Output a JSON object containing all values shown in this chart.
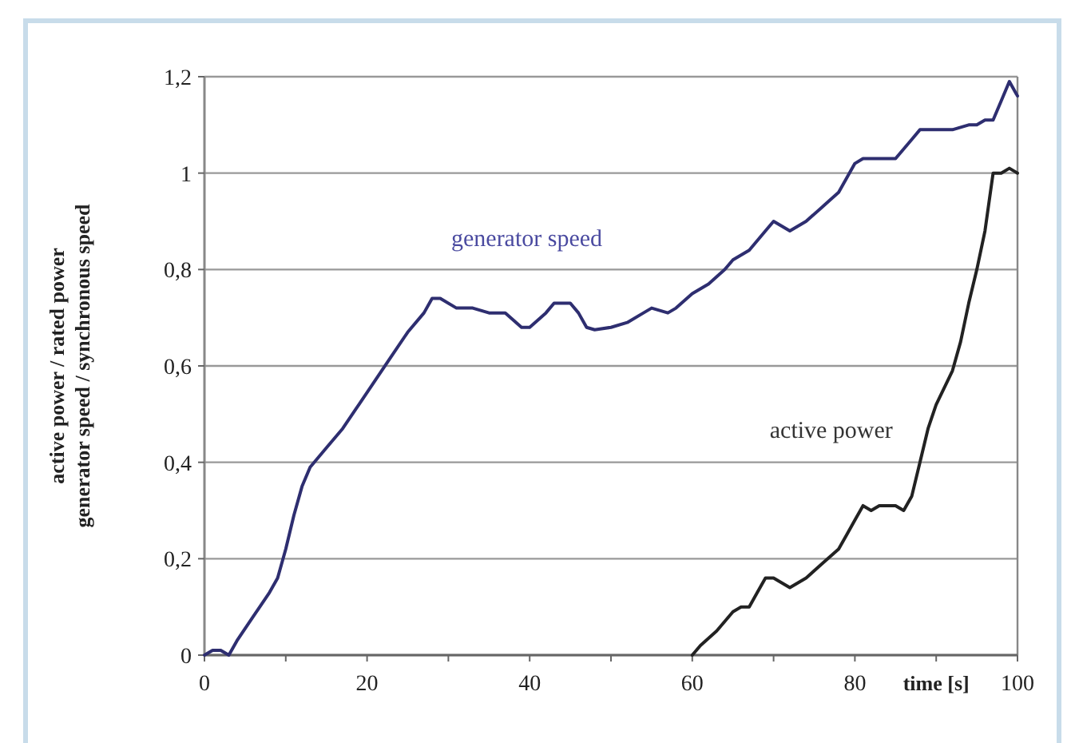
{
  "chart_data": {
    "type": "line",
    "xlabel": "time [s]",
    "ylabel": "active power / rated power\ngenerator speed / synchronous speed",
    "xlim": [
      0,
      100
    ],
    "ylim": [
      0,
      1.2
    ],
    "xticks": [
      0,
      {
        "value": 10,
        "label": null
      },
      20,
      {
        "value": 30,
        "label": null
      },
      40,
      {
        "value": 50,
        "label": null
      },
      60,
      {
        "value": 70,
        "label": null
      },
      80,
      {
        "value": 90,
        "label": null
      },
      100
    ],
    "yticks": [
      0,
      {
        "value": 0.2,
        "label": "0,2"
      },
      {
        "value": 0.4,
        "label": "0,4"
      },
      {
        "value": 0.6,
        "label": "0,6"
      },
      {
        "value": 0.8,
        "label": "0,8"
      },
      1,
      {
        "value": 1.2,
        "label": "1,2"
      }
    ],
    "grid": "y",
    "marker": "none",
    "line_style": "solid",
    "series": [
      {
        "name": "generator speed",
        "color": "#2e2e70",
        "x": [
          0,
          1,
          2,
          3,
          4,
          6,
          8,
          9,
          10,
          11,
          12,
          13,
          15,
          17,
          19,
          21,
          23,
          25,
          27,
          28,
          29,
          31,
          33,
          35,
          37,
          39,
          40,
          42,
          43,
          45,
          46,
          47,
          48,
          50,
          52,
          54,
          55,
          57,
          58,
          60,
          62,
          64,
          65,
          67,
          69,
          70,
          72,
          74,
          76,
          78,
          80,
          81,
          83,
          85,
          87,
          88,
          90,
          92,
          94,
          95,
          96,
          97,
          98,
          99,
          100
        ],
        "values": [
          0,
          0.01,
          0.01,
          0,
          0.03,
          0.08,
          0.13,
          0.16,
          0.22,
          0.29,
          0.35,
          0.39,
          0.43,
          0.47,
          0.52,
          0.57,
          0.62,
          0.67,
          0.71,
          0.74,
          0.74,
          0.72,
          0.72,
          0.71,
          0.71,
          0.68,
          0.68,
          0.71,
          0.73,
          0.73,
          0.71,
          0.68,
          0.675,
          0.68,
          0.69,
          0.71,
          0.72,
          0.71,
          0.72,
          0.75,
          0.77,
          0.8,
          0.82,
          0.84,
          0.88,
          0.9,
          0.88,
          0.9,
          0.93,
          0.96,
          1.02,
          1.03,
          1.03,
          1.03,
          1.07,
          1.09,
          1.09,
          1.09,
          1.1,
          1.1,
          1.11,
          1.11,
          1.15,
          1.19,
          1.16
        ]
      },
      {
        "name": "active power",
        "color": "#222222",
        "x": [
          60,
          61,
          63,
          65,
          66,
          67,
          68,
          69,
          70,
          71,
          72,
          74,
          76,
          78,
          79,
          80,
          81,
          82,
          83,
          85,
          86,
          87,
          88,
          89,
          90,
          92,
          93,
          94,
          95,
          96,
          97,
          98,
          99,
          100
        ],
        "values": [
          0,
          0.02,
          0.05,
          0.09,
          0.1,
          0.1,
          0.13,
          0.16,
          0.16,
          0.15,
          0.14,
          0.16,
          0.19,
          0.22,
          0.25,
          0.28,
          0.31,
          0.3,
          0.31,
          0.31,
          0.3,
          0.33,
          0.4,
          0.47,
          0.52,
          0.59,
          0.65,
          0.73,
          0.8,
          0.88,
          1,
          1,
          1.01,
          1
        ]
      }
    ]
  }
}
